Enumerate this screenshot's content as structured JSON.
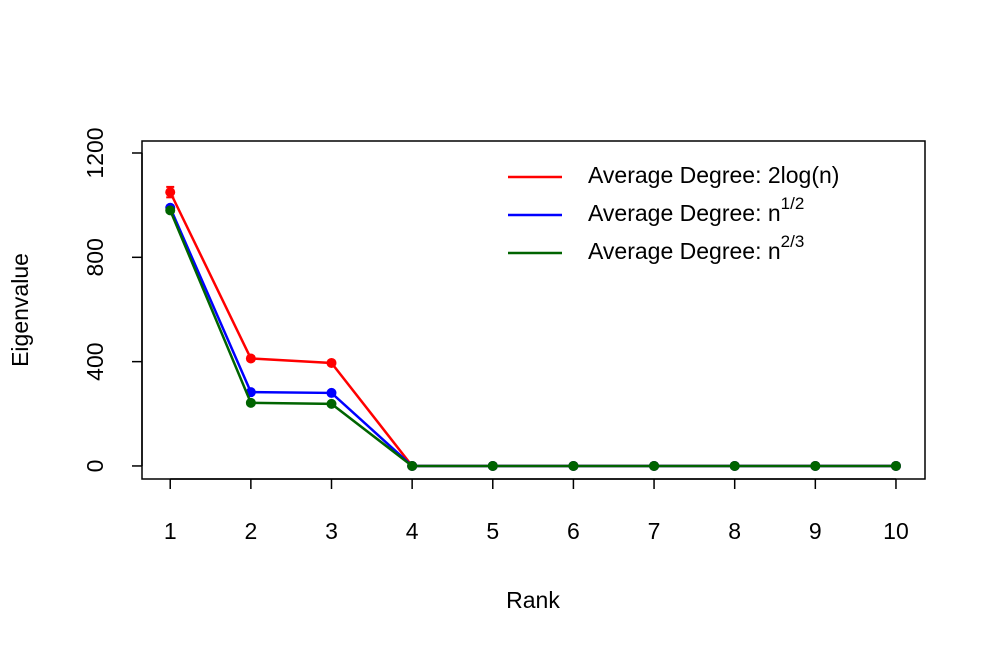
{
  "chart_data": {
    "type": "line",
    "x_label": "Rank",
    "y_label": "Eigenvalue",
    "x": [
      1,
      2,
      3,
      4,
      5,
      6,
      7,
      8,
      9,
      10
    ],
    "xlim": [
      0.65,
      10.36
    ],
    "xticks": [
      1,
      2,
      3,
      4,
      5,
      6,
      7,
      8,
      9,
      10
    ],
    "ylim": [
      -50,
      1246
    ],
    "yticks": [
      0,
      400,
      800,
      1200
    ],
    "legend": "top-right",
    "series": [
      {
        "name": "Average Degree:  2log(n)",
        "color": "#ff0000",
        "values": [
          1050,
          412,
          395,
          0,
          0,
          0,
          0,
          0,
          0,
          0
        ],
        "errors": [
          20,
          8,
          8,
          0,
          0,
          0,
          0,
          0,
          0,
          0
        ]
      },
      {
        "name": "Average Degree:  n",
        "superscript": "1/2",
        "color": "#0000ff",
        "values": [
          990,
          283,
          280,
          0,
          0,
          0,
          0,
          0,
          0,
          0
        ],
        "errors": [
          8,
          5,
          5,
          0,
          0,
          0,
          0,
          0,
          0,
          0
        ]
      },
      {
        "name": "Average Degree:  n",
        "superscript": "2/3",
        "color": "#006400",
        "values": [
          980,
          242,
          238,
          0,
          0,
          0,
          0,
          0,
          0,
          0
        ],
        "errors": [
          6,
          4,
          4,
          0,
          0,
          0,
          0,
          0,
          0,
          0
        ]
      }
    ]
  }
}
